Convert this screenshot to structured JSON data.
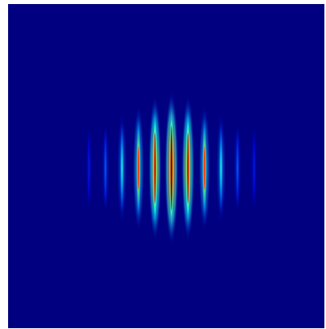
{
  "chart_data": {
    "type": "heatmap",
    "title": "",
    "xlabel": "",
    "ylabel": "",
    "colormap": "jet",
    "pattern": "vertical-interference-fringes",
    "fringe_count_visible": 9,
    "fringe_peak_intensities": [
      0.08,
      0.18,
      0.38,
      0.62,
      0.88,
      1.0,
      0.88,
      0.62,
      0.38,
      0.18,
      0.08
    ],
    "background_color": "#000080",
    "peak_color": "#800000",
    "grid": false,
    "legend": "none"
  }
}
